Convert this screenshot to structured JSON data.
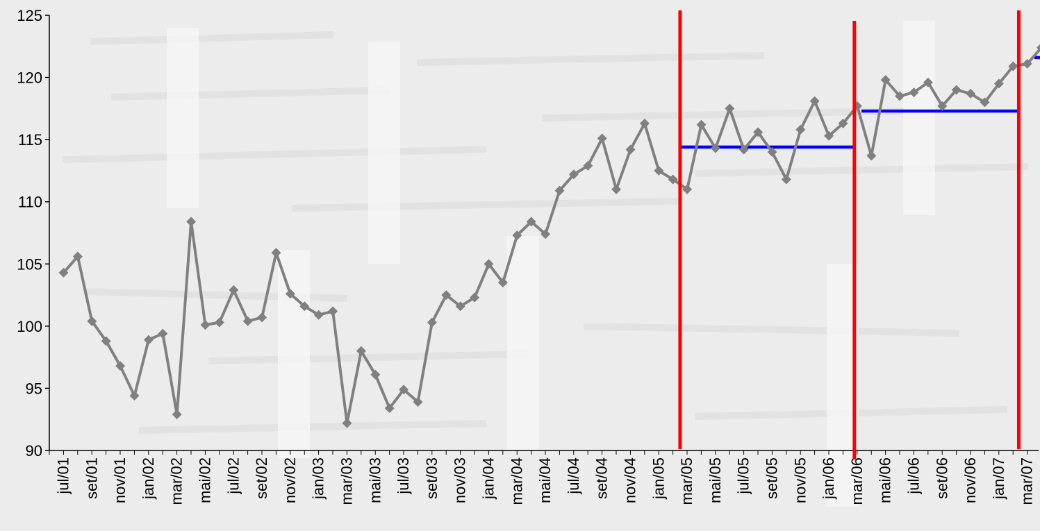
{
  "chart_data": {
    "type": "line",
    "title": "",
    "xlabel": "",
    "ylabel": "",
    "ylim": [
      90,
      125
    ],
    "yticks": [
      90,
      95,
      100,
      105,
      110,
      115,
      120,
      125
    ],
    "grid": false,
    "legend": "none",
    "x_tick_labels": [
      "jul/01",
      "set/01",
      "nov/01",
      "jan/02",
      "mar/02",
      "mai/02",
      "jul/02",
      "set/02",
      "nov/02",
      "jan/03",
      "mar/03",
      "mai/03",
      "jul/03",
      "set/03",
      "nov/03",
      "jan/04",
      "mar/04",
      "mai/04",
      "jul/04",
      "set/04",
      "nov/04",
      "jan/05",
      "mar/05",
      "mai/05",
      "jul/05",
      "set/05",
      "nov/05",
      "jan/06",
      "mar/06",
      "mai/06",
      "jul/06",
      "set/06",
      "nov/06",
      "jan/07",
      "mar/07"
    ],
    "series": [
      {
        "color": "#808080",
        "values": [
          104.3,
          105.6,
          100.4,
          98.8,
          96.8,
          94.4,
          98.9,
          99.4,
          92.9,
          108.4,
          100.1,
          100.3,
          102.9,
          100.4,
          100.7,
          105.9,
          102.6,
          101.6,
          100.9,
          101.2,
          92.2,
          98.0,
          96.1,
          93.4,
          94.9,
          93.9,
          100.3,
          102.5,
          101.6,
          102.3,
          105.0,
          103.5,
          107.3,
          108.4,
          107.4,
          110.9,
          112.2,
          112.9,
          115.1,
          111.0,
          114.2,
          116.3,
          112.5,
          111.8,
          111.0,
          116.2,
          114.3,
          117.5,
          114.2,
          115.6,
          114.0,
          111.8,
          115.8,
          118.1,
          115.3,
          116.3,
          117.7,
          113.7,
          119.8,
          118.5,
          118.8,
          119.6,
          117.7,
          119.0,
          118.7,
          118.0,
          119.5,
          120.9,
          121.1,
          122.4
        ]
      }
    ],
    "regime_breaks": [
      {
        "after_index": 43.5,
        "color": "#ff0000"
      },
      {
        "after_index": 55.8,
        "color": "#ff0000"
      },
      {
        "after_index": 67.4,
        "color": "#ff0000"
      }
    ],
    "regime_means": [
      {
        "start": 43.5,
        "end": 55.8,
        "value": 114.4,
        "color": "#0000ff"
      },
      {
        "start": 56.3,
        "end": 67.3,
        "value": 117.3,
        "color": "#0000ff"
      },
      {
        "start": 68.5,
        "end": 69.9,
        "value": 121.6,
        "color": "#0000ff"
      }
    ]
  }
}
